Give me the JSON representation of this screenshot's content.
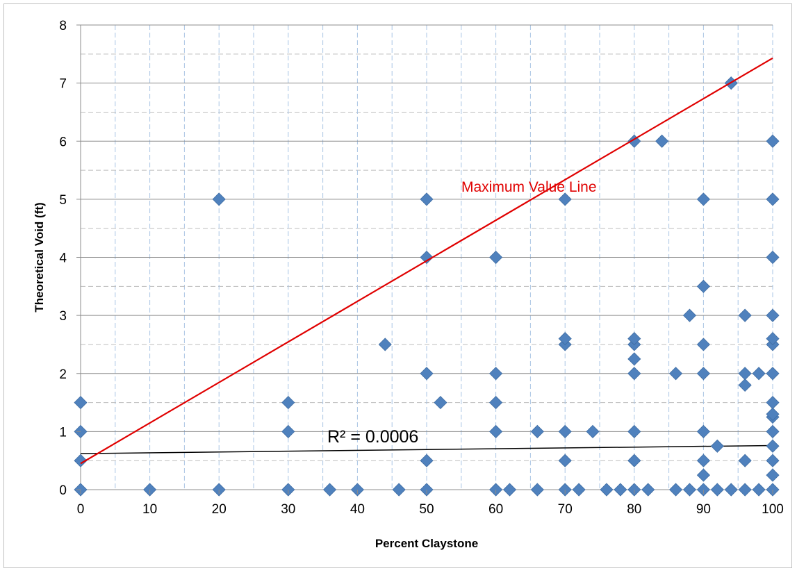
{
  "chart_data": {
    "type": "scatter",
    "title": "",
    "xlabel": "Percent Claystone",
    "ylabel": "Theoretical Void (ft)",
    "xlim": [
      0,
      100
    ],
    "ylim": [
      0,
      8
    ],
    "x_ticks": [
      0,
      10,
      20,
      30,
      40,
      50,
      60,
      70,
      80,
      90,
      100
    ],
    "y_ticks": [
      0,
      1,
      2,
      3,
      4,
      5,
      6,
      7,
      8
    ],
    "x_tick_labels": [
      "0",
      "10",
      "20",
      "30",
      "40",
      "50",
      "60",
      "70",
      "80",
      "90",
      "100"
    ],
    "y_tick_labels": [
      "0",
      "1",
      "2",
      "3",
      "4",
      "5",
      "6",
      "7",
      "8"
    ],
    "grid": {
      "major": true,
      "minor": true,
      "minor_style": "dashed"
    },
    "legend": "none",
    "marker_color": "#4f81bd",
    "points": [
      [
        0,
        0
      ],
      [
        0,
        0.5
      ],
      [
        0,
        1
      ],
      [
        0,
        1.5
      ],
      [
        10,
        0
      ],
      [
        20,
        0
      ],
      [
        20,
        5
      ],
      [
        30,
        0
      ],
      [
        30,
        1
      ],
      [
        30,
        1.5
      ],
      [
        36,
        0
      ],
      [
        40,
        0
      ],
      [
        44,
        2.5
      ],
      [
        46,
        0
      ],
      [
        50,
        0
      ],
      [
        50,
        0.5
      ],
      [
        50,
        2
      ],
      [
        50,
        4
      ],
      [
        50,
        5
      ],
      [
        52,
        1.5
      ],
      [
        60,
        0
      ],
      [
        60,
        1
      ],
      [
        60,
        1.5
      ],
      [
        60,
        2
      ],
      [
        60,
        4
      ],
      [
        62,
        0
      ],
      [
        66,
        0
      ],
      [
        66,
        1
      ],
      [
        70,
        0
      ],
      [
        70,
        0.5
      ],
      [
        70,
        1
      ],
      [
        70,
        2.5
      ],
      [
        70,
        2.6
      ],
      [
        70,
        5
      ],
      [
        72,
        0
      ],
      [
        74,
        1
      ],
      [
        76,
        0
      ],
      [
        78,
        0
      ],
      [
        80,
        0
      ],
      [
        80,
        0.5
      ],
      [
        80,
        1
      ],
      [
        80,
        2
      ],
      [
        80,
        2.25
      ],
      [
        80,
        2.5
      ],
      [
        80,
        2.6
      ],
      [
        80,
        6
      ],
      [
        82,
        0
      ],
      [
        84,
        6
      ],
      [
        86,
        0
      ],
      [
        86,
        2
      ],
      [
        88,
        0
      ],
      [
        88,
        3
      ],
      [
        90,
        0
      ],
      [
        90,
        0.25
      ],
      [
        90,
        0.5
      ],
      [
        90,
        1
      ],
      [
        90,
        2
      ],
      [
        90,
        2.5
      ],
      [
        90,
        3.5
      ],
      [
        90,
        5
      ],
      [
        92,
        0
      ],
      [
        92,
        0.75
      ],
      [
        94,
        0
      ],
      [
        94,
        7
      ],
      [
        96,
        0
      ],
      [
        96,
        0.5
      ],
      [
        96,
        1.8
      ],
      [
        96,
        2
      ],
      [
        96,
        3
      ],
      [
        98,
        0
      ],
      [
        98,
        2
      ],
      [
        100,
        0
      ],
      [
        100,
        0.25
      ],
      [
        100,
        0.5
      ],
      [
        100,
        0.75
      ],
      [
        100,
        1
      ],
      [
        100,
        1.25
      ],
      [
        100,
        1.3
      ],
      [
        100,
        1.5
      ],
      [
        100,
        2
      ],
      [
        100,
        2.5
      ],
      [
        100,
        2.6
      ],
      [
        100,
        3
      ],
      [
        100,
        4
      ],
      [
        100,
        5
      ],
      [
        100,
        6
      ]
    ],
    "trendline": {
      "x": [
        0,
        100
      ],
      "y": [
        0.62,
        0.76
      ],
      "color": "#000000",
      "label": "R² = 0.0006"
    },
    "max_value_line": {
      "x": [
        0,
        100
      ],
      "y": [
        0.45,
        7.43
      ],
      "color": "#e00000",
      "label": "Maximum Value Line"
    }
  }
}
